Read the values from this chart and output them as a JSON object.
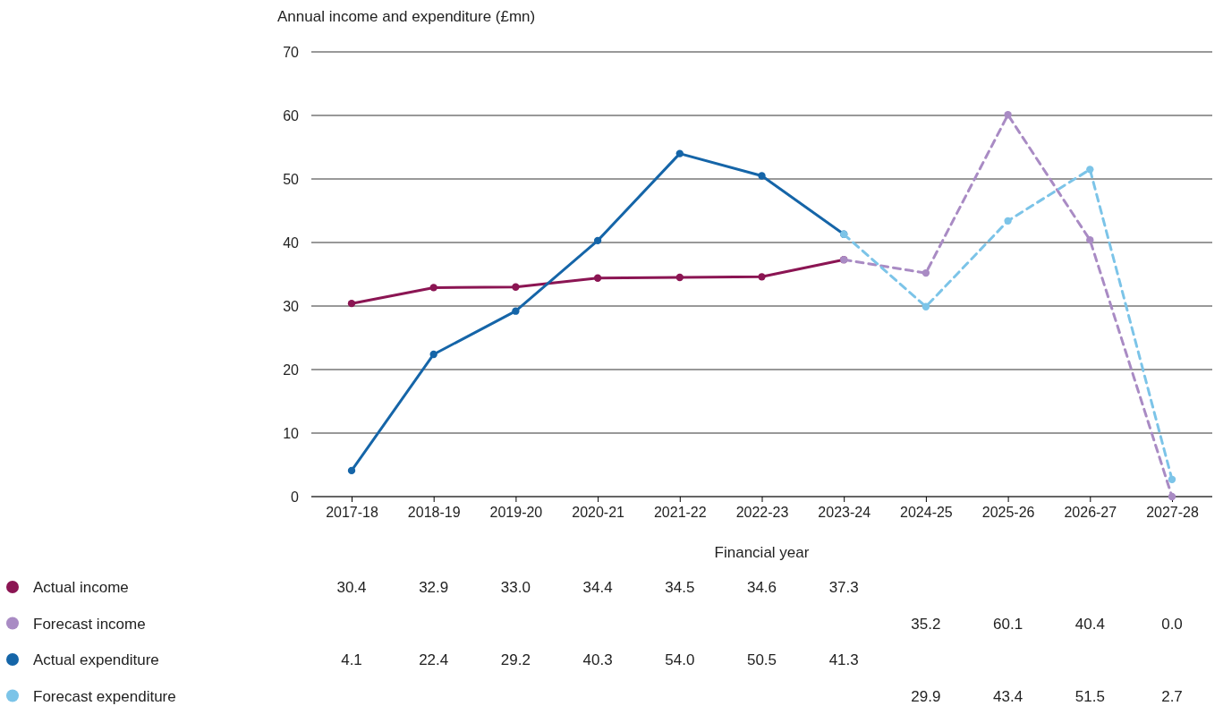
{
  "chart_data": {
    "type": "line",
    "ylabel": "Annual income and expenditure (£mn)",
    "xlabel": "Financial year",
    "categories": [
      "2017-18",
      "2018-19",
      "2019-20",
      "2020-21",
      "2021-22",
      "2022-23",
      "2023-24",
      "2024-25",
      "2025-26",
      "2026-27",
      "2027-28"
    ],
    "ylim": [
      0,
      70
    ],
    "yticks": [
      0,
      10,
      20,
      30,
      40,
      50,
      60,
      70
    ],
    "grid": "y",
    "legend": "bottom left",
    "marker": "circle",
    "data_labels": true,
    "series": [
      {
        "name": "Actual income",
        "color": "#8b1553",
        "line_style": "solid",
        "values": [
          30.4,
          32.9,
          33.0,
          34.4,
          34.5,
          34.6,
          37.3,
          null,
          null,
          null,
          null
        ],
        "value_labels": [
          "30.4",
          "32.9",
          "33.0",
          "34.4",
          "34.5",
          "34.6",
          "37.3",
          null,
          null,
          null,
          null
        ]
      },
      {
        "name": "Forecast income",
        "color": "#a98bc4",
        "line_style": "dashed",
        "values": [
          null,
          null,
          null,
          null,
          null,
          null,
          37.3,
          35.2,
          60.1,
          40.4,
          0.0
        ],
        "value_labels": [
          null,
          null,
          null,
          null,
          null,
          null,
          null,
          "35.2",
          "60.1",
          "40.4",
          "0.0"
        ]
      },
      {
        "name": "Actual expenditure",
        "color": "#1565a8",
        "line_style": "solid",
        "values": [
          4.1,
          22.4,
          29.2,
          40.3,
          54.0,
          50.5,
          41.3,
          null,
          null,
          null,
          null
        ],
        "value_labels": [
          "4.1",
          "22.4",
          "29.2",
          "40.3",
          "54.0",
          "50.5",
          "41.3",
          null,
          null,
          null,
          null
        ]
      },
      {
        "name": "Forecast expenditure",
        "color": "#7cc4e8",
        "line_style": "dashed",
        "values": [
          null,
          null,
          null,
          null,
          null,
          null,
          41.3,
          29.9,
          43.4,
          51.5,
          2.7
        ],
        "value_labels": [
          null,
          null,
          null,
          null,
          null,
          null,
          null,
          "29.9",
          "43.4",
          "51.5",
          "2.7"
        ]
      }
    ]
  }
}
